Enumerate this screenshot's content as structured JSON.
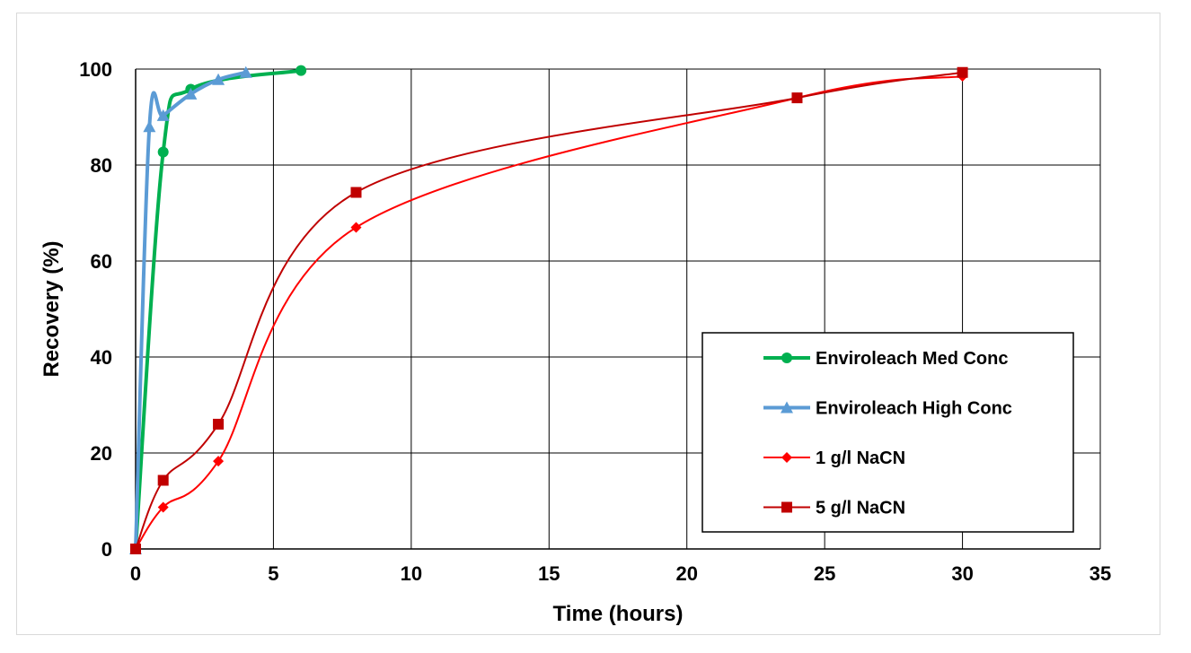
{
  "chart_data": {
    "type": "line",
    "title": "",
    "xlabel": "Time (hours)",
    "ylabel": "Recovery (%)",
    "xlim": [
      0,
      35
    ],
    "ylim": [
      0,
      100
    ],
    "xticks": [
      "0",
      "5",
      "10",
      "15",
      "20",
      "25",
      "30",
      "35"
    ],
    "yticks": [
      "0",
      "20",
      "40",
      "60",
      "80",
      "100"
    ],
    "grid": true,
    "legend_position": "bottom-right",
    "series": [
      {
        "name": "Enviroleach Med Conc",
        "color": "#00b050",
        "marker": "circle",
        "x": [
          0,
          1,
          2,
          6
        ],
        "y": [
          0,
          82.7,
          95.8,
          99.7
        ]
      },
      {
        "name": "Enviroleach High Conc",
        "color": "#5b9bd5",
        "marker": "triangle",
        "x": [
          0,
          0.5,
          1,
          2,
          3,
          4
        ],
        "y": [
          0,
          88,
          90.3,
          94.8,
          97.8,
          99.3
        ]
      },
      {
        "name": "1 g/l NaCN",
        "color": "#ff0000",
        "marker": "diamond",
        "x": [
          0,
          1,
          3,
          8,
          24,
          30
        ],
        "y": [
          0,
          8.7,
          18.3,
          67,
          94,
          98.5
        ]
      },
      {
        "name": "5 g/l NaCN",
        "color": "#c00000",
        "marker": "square",
        "x": [
          0,
          1,
          3,
          8,
          24,
          30
        ],
        "y": [
          0,
          14.3,
          26,
          74.3,
          94,
          99.3
        ]
      }
    ]
  }
}
